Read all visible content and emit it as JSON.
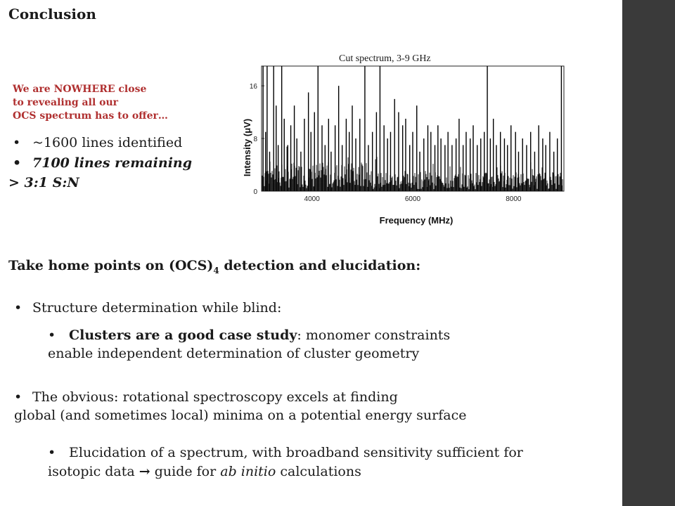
{
  "slide": {
    "title": "Conclusion",
    "note_lines": [
      "We are NOWHERE close",
      "to revealing all our",
      "OCS spectrum has to offer…"
    ],
    "bullet_dot": "•",
    "stat1": "~1600 lines identified",
    "stat2": "7100 lines remaining",
    "stat3": "> 3:1 S:N",
    "heading_pre": "Take home points on (OCS)",
    "heading_sub": "4",
    "heading_post": " detection and elucidation:",
    "p1": "Structure determination while blind:",
    "p1a_bold": "Clusters are a good case study",
    "p1a_rest": ": monomer constraints",
    "p1a_line2": "enable independent determination of cluster geometry",
    "p2": "The obvious: rotational spectroscopy excels at finding",
    "p2_line2": "global (and sometimes local) minima on a potential energy surface",
    "p3": "Elucidation of a spectrum, with broadband sensitivity sufficient for",
    "p3_line2_pre": "isotopic data ",
    "p3_arrow": "→",
    "p3_line2_mid": " guide for ",
    "p3_line2_ital": "ab initio",
    "p3_line2_post": " calculations"
  },
  "chart_data": {
    "type": "line",
    "caption": "Cut spectrum, 3-9 GHz",
    "xlabel": "Frequency (MHz)",
    "ylabel": "Intensity (μV)",
    "xlim": [
      3000,
      9000
    ],
    "ylim": [
      0,
      19
    ],
    "xticks": [
      4000,
      6000,
      8000
    ],
    "yticks": [
      0,
      8,
      16
    ],
    "grid": false,
    "peaks": [
      [
        3030,
        19
      ],
      [
        3080,
        9
      ],
      [
        3110,
        19
      ],
      [
        3160,
        6
      ],
      [
        3240,
        19
      ],
      [
        3290,
        13
      ],
      [
        3330,
        7
      ],
      [
        3400,
        19
      ],
      [
        3450,
        11
      ],
      [
        3520,
        7
      ],
      [
        3580,
        10
      ],
      [
        3650,
        13
      ],
      [
        3700,
        8
      ],
      [
        3780,
        6
      ],
      [
        3850,
        11
      ],
      [
        3930,
        15
      ],
      [
        3980,
        9
      ],
      [
        4050,
        12
      ],
      [
        4120,
        19
      ],
      [
        4200,
        10
      ],
      [
        4260,
        7
      ],
      [
        4330,
        11
      ],
      [
        4380,
        6
      ],
      [
        4460,
        10
      ],
      [
        4530,
        16
      ],
      [
        4600,
        7
      ],
      [
        4680,
        11
      ],
      [
        4740,
        9
      ],
      [
        4800,
        13
      ],
      [
        4870,
        8
      ],
      [
        4950,
        11
      ],
      [
        5050,
        19
      ],
      [
        5120,
        7
      ],
      [
        5200,
        9
      ],
      [
        5280,
        12
      ],
      [
        5350,
        19
      ],
      [
        5430,
        10
      ],
      [
        5500,
        8
      ],
      [
        5560,
        9
      ],
      [
        5640,
        14
      ],
      [
        5720,
        12
      ],
      [
        5800,
        10
      ],
      [
        5860,
        11
      ],
      [
        5940,
        7
      ],
      [
        6000,
        9
      ],
      [
        6080,
        13
      ],
      [
        6140,
        6
      ],
      [
        6220,
        8
      ],
      [
        6300,
        10
      ],
      [
        6360,
        9
      ],
      [
        6440,
        7
      ],
      [
        6500,
        10
      ],
      [
        6560,
        8
      ],
      [
        6640,
        7
      ],
      [
        6700,
        9
      ],
      [
        6780,
        7
      ],
      [
        6860,
        8
      ],
      [
        6920,
        11
      ],
      [
        7000,
        7
      ],
      [
        7060,
        9
      ],
      [
        7140,
        8
      ],
      [
        7200,
        10
      ],
      [
        7280,
        7
      ],
      [
        7350,
        8
      ],
      [
        7420,
        9
      ],
      [
        7480,
        19
      ],
      [
        7540,
        8
      ],
      [
        7600,
        11
      ],
      [
        7660,
        7
      ],
      [
        7740,
        9
      ],
      [
        7820,
        8
      ],
      [
        7880,
        7
      ],
      [
        7950,
        10
      ],
      [
        8040,
        9
      ],
      [
        8100,
        6
      ],
      [
        8180,
        8
      ],
      [
        8260,
        7
      ],
      [
        8340,
        9
      ],
      [
        8420,
        6
      ],
      [
        8500,
        10
      ],
      [
        8580,
        8
      ],
      [
        8640,
        7
      ],
      [
        8720,
        9
      ],
      [
        8800,
        6
      ],
      [
        8870,
        8
      ],
      [
        8950,
        19
      ]
    ]
  }
}
